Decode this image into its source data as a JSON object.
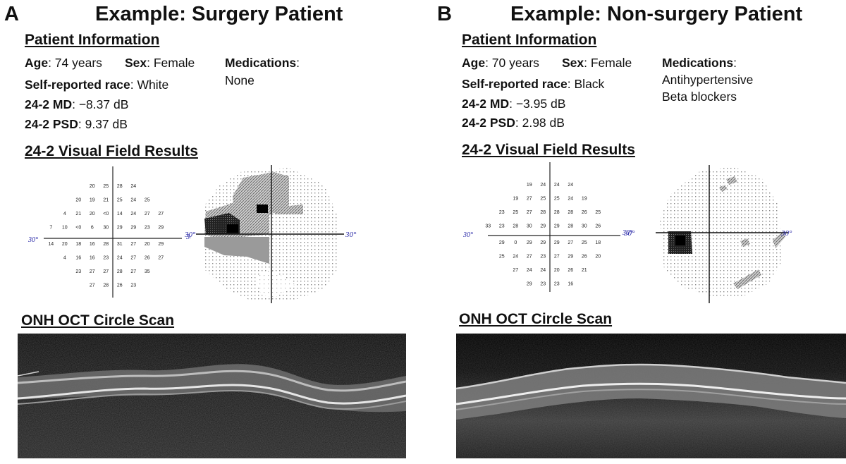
{
  "panels": [
    {
      "letter": "A",
      "title": "Example: Surgery Patient",
      "patient_info_heading": "Patient Information",
      "age_label": "Age",
      "age_value": ": 74 years",
      "sex_label": "Sex",
      "sex_value": ": Female",
      "race_label": "Self-reported race",
      "race_value": ": White",
      "md_label": "24-2 MD",
      "md_value": ": −8.37 dB",
      "psd_label": "24-2 PSD",
      "psd_value": ": 9.37 dB",
      "medications_label": "Medications",
      "medications_colon": ":",
      "medications": [
        "None"
      ],
      "vf_heading": "24-2 Visual Field Results",
      "degree_label": "30°",
      "vf_rows": [
        [
          "20",
          "25",
          "28",
          "24"
        ],
        [
          "20",
          "19",
          "21",
          "25",
          "24",
          "25"
        ],
        [
          "4",
          "21",
          "20",
          "<0",
          "14",
          "24",
          "27",
          "27"
        ],
        [
          "7",
          "10",
          "<0",
          "6",
          "30",
          "29",
          "29",
          "23",
          "29"
        ],
        [
          "14",
          "20",
          "18",
          "16",
          "28",
          "31",
          "27",
          "20",
          "29"
        ],
        [
          "4",
          "16",
          "16",
          "23",
          "24",
          "27",
          "26",
          "27"
        ],
        [
          "23",
          "27",
          "27",
          "28",
          "27",
          "35"
        ],
        [
          "27",
          "28",
          "26",
          "23"
        ]
      ],
      "oct_heading": "ONH OCT Circle Scan"
    },
    {
      "letter": "B",
      "title": "Example: Non-surgery Patient",
      "patient_info_heading": "Patient Information",
      "age_label": "Age",
      "age_value": ": 70 years",
      "sex_label": "Sex",
      "sex_value": ": Female",
      "race_label": "Self-reported race",
      "race_value": ": Black",
      "md_label": "24-2 MD",
      "md_value": ": −3.95 dB",
      "psd_label": "24-2 PSD",
      "psd_value": ": 2.98 dB",
      "medications_label": "Medications",
      "medications_colon": ":",
      "medications": [
        "Antihypertensive",
        "Beta blockers"
      ],
      "vf_heading": "24-2 Visual Field Results",
      "degree_label": "30°",
      "vf_rows": [
        [
          "19",
          "24",
          "24",
          "24"
        ],
        [
          "19",
          "27",
          "25",
          "25",
          "24",
          "19"
        ],
        [
          "23",
          "25",
          "27",
          "28",
          "28",
          "28",
          "26",
          "25"
        ],
        [
          "33",
          "23",
          "28",
          "30",
          "29",
          "29",
          "28",
          "30",
          "26"
        ],
        [
          "29",
          "0",
          "29",
          "29",
          "29",
          "27",
          "25",
          "18"
        ],
        [
          "25",
          "24",
          "27",
          "23",
          "27",
          "29",
          "26",
          "20"
        ],
        [
          "27",
          "24",
          "24",
          "20",
          "26",
          "21"
        ],
        [
          "29",
          "23",
          "23",
          "16"
        ]
      ],
      "oct_heading": "ONH OCT Circle Scan"
    }
  ]
}
